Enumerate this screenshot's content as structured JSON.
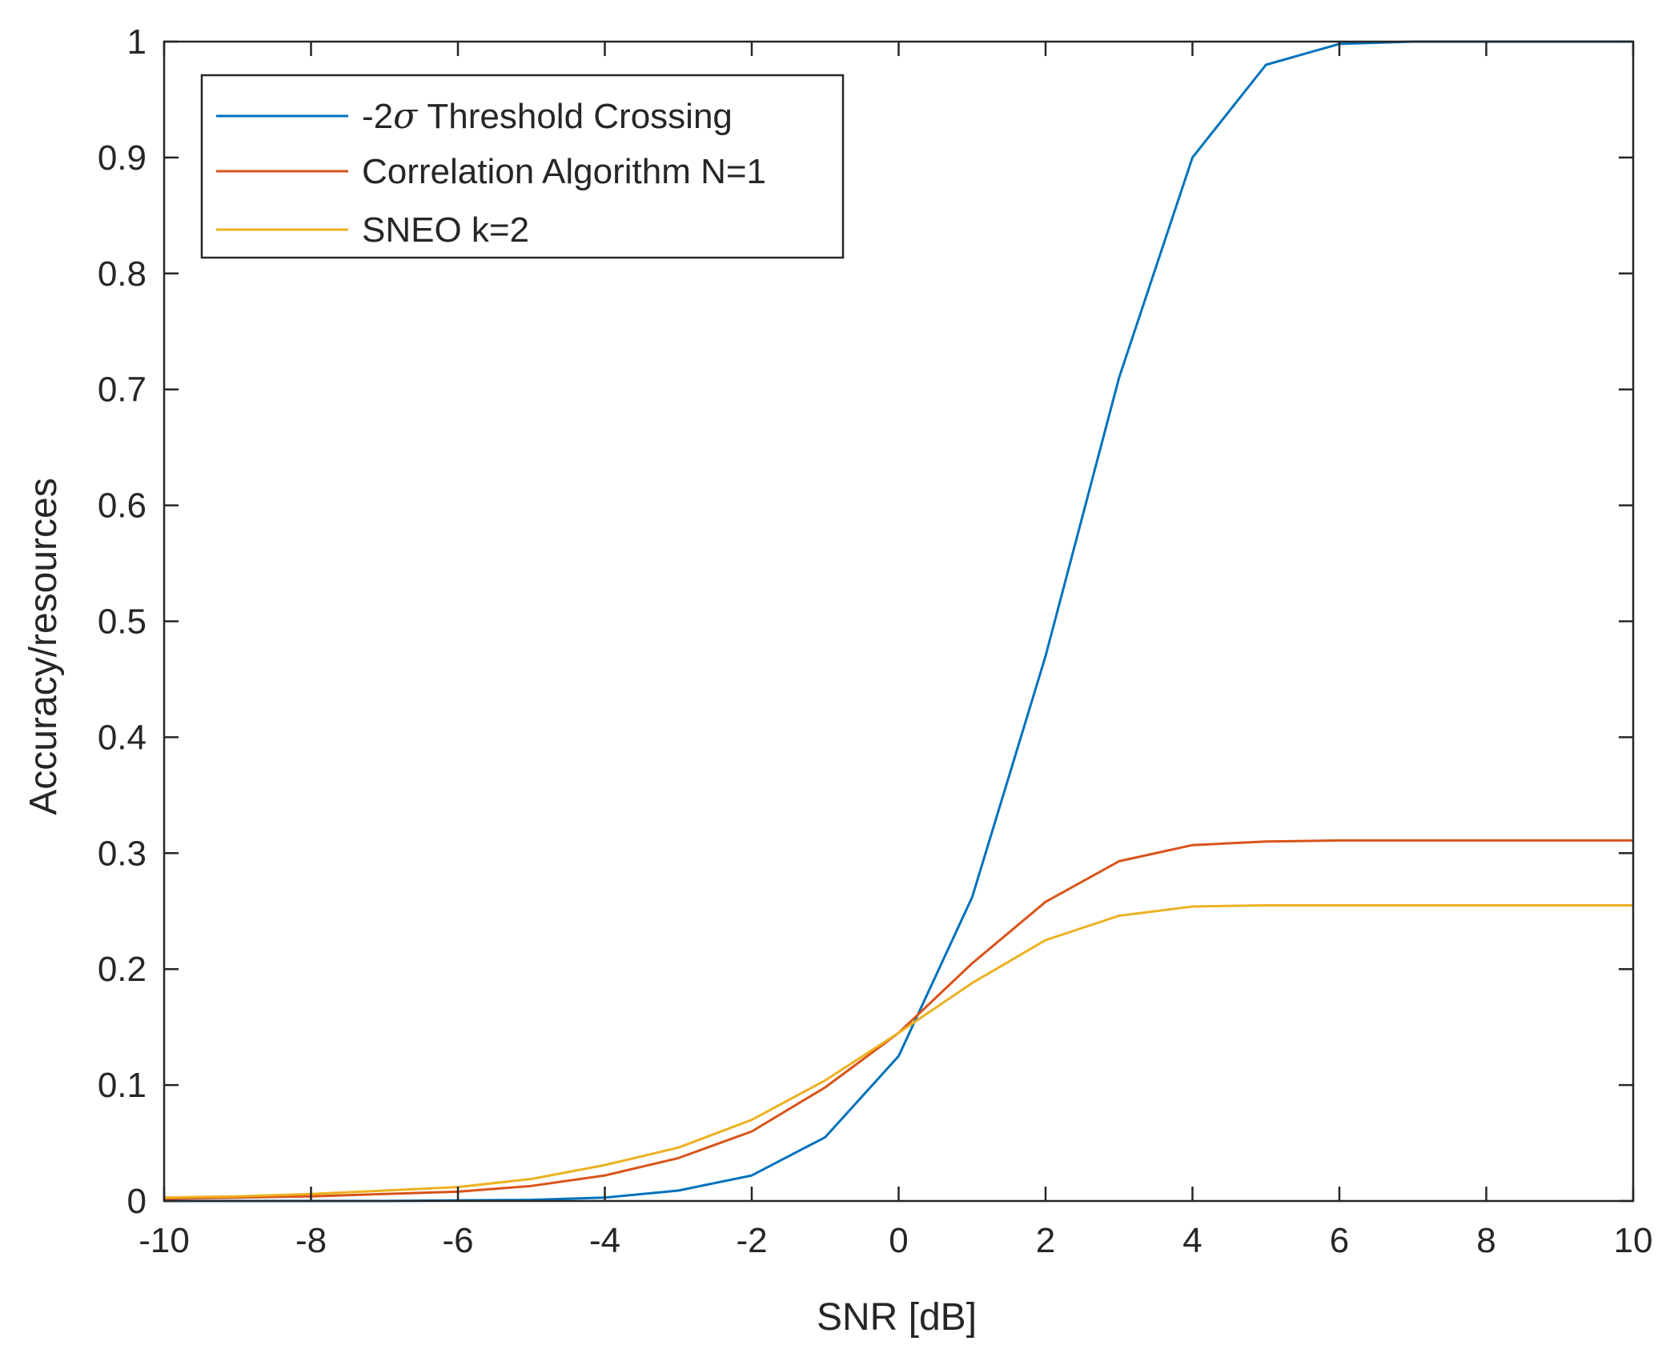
{
  "chart_data": {
    "type": "line",
    "title": "",
    "xlabel": "SNR [dB]",
    "ylabel": "Accuracy/resources",
    "xlim": [
      -10,
      10
    ],
    "ylim": [
      0,
      1
    ],
    "x_ticks": [
      "-10",
      "-8",
      "-6",
      "-4",
      "-2",
      "0",
      "2",
      "4",
      "6",
      "8",
      "10"
    ],
    "y_ticks": [
      "0",
      "0.1",
      "0.2",
      "0.3",
      "0.4",
      "0.5",
      "0.6",
      "0.7",
      "0.8",
      "0.9",
      "1"
    ],
    "x_tick_values": [
      -10,
      -8,
      -6,
      -4,
      -2,
      0,
      2,
      4,
      6,
      8,
      10
    ],
    "y_tick_values": [
      0,
      0.1,
      0.2,
      0.3,
      0.4,
      0.5,
      0.6,
      0.7,
      0.8,
      0.9,
      1
    ],
    "grid": false,
    "legend_position": "top-left",
    "x": [
      -10,
      -9,
      -8,
      -7,
      -6,
      -5,
      -4,
      -3,
      -2,
      -1,
      0,
      1,
      2,
      3,
      4,
      5,
      6,
      7,
      8,
      9,
      10
    ],
    "series": [
      {
        "name": "-2σ Threshold Crossing",
        "legend_prefix": "-2",
        "legend_symbol": "σ",
        "legend_suffix": " Threshold Crossing",
        "color": "#0072bd",
        "values": [
          0.0,
          0.0,
          0.0,
          0.0,
          0.0005,
          0.001,
          0.003,
          0.009,
          0.022,
          0.055,
          0.125,
          0.262,
          0.47,
          0.71,
          0.9,
          0.98,
          0.998,
          1.0,
          1.0,
          1.0,
          1.0
        ]
      },
      {
        "name": "Correlation Algorithm N=1",
        "color": "#d95319",
        "values": [
          0.002,
          0.003,
          0.004,
          0.006,
          0.008,
          0.013,
          0.022,
          0.037,
          0.06,
          0.098,
          0.145,
          0.205,
          0.258,
          0.293,
          0.307,
          0.31,
          0.311,
          0.311,
          0.311,
          0.311,
          0.311
        ]
      },
      {
        "name": "SNEO k=2",
        "color": "#edb120",
        "values": [
          0.003,
          0.004,
          0.006,
          0.009,
          0.012,
          0.019,
          0.031,
          0.046,
          0.07,
          0.104,
          0.145,
          0.188,
          0.225,
          0.246,
          0.254,
          0.255,
          0.255,
          0.255,
          0.255,
          0.255,
          0.255
        ]
      }
    ]
  }
}
